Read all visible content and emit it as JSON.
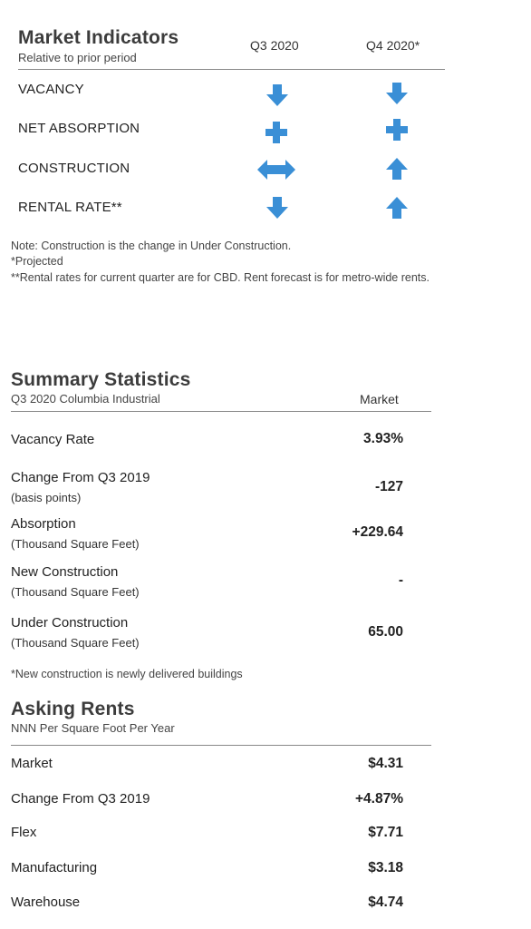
{
  "market_indicators": {
    "title": "Market Indicators",
    "subtitle": "Relative to prior period",
    "col1": "Q3 2020",
    "col2": "Q4 2020*",
    "icon_color": "#3a8fd6",
    "rows": [
      {
        "label": "VACANCY",
        "q3": "arrow-down-icon",
        "q4": "arrow-down-icon"
      },
      {
        "label": "NET ABSORPTION",
        "q3": "plus-icon",
        "q4": "plus-icon"
      },
      {
        "label": "CONSTRUCTION",
        "q3": "arrow-left-right-icon",
        "q4": "arrow-up-icon"
      },
      {
        "label": "RENTAL RATE**",
        "q3": "arrow-down-icon",
        "q4": "arrow-up-icon"
      }
    ],
    "notes": [
      "Note: Construction is the change in Under Construction.",
      "*Projected",
      "**Rental rates for current quarter are for CBD. Rent forecast is for metro-wide rents."
    ]
  },
  "summary": {
    "title": "Summary Statistics",
    "subtitle": "Q3 2020 Columbia Industrial",
    "col": "Market",
    "rows": [
      {
        "label": "Vacancy Rate",
        "sub": "",
        "value": "3.93%"
      },
      {
        "label": "Change From Q3 2019",
        "sub": "(basis points)",
        "value": "-127"
      },
      {
        "label": "Absorption",
        "sub": "(Thousand Square Feet)",
        "value": "+229.64"
      },
      {
        "label": "New Construction",
        "sub": "(Thousand Square Feet)",
        "value": "-"
      },
      {
        "label": "Under Construction",
        "sub": "(Thousand Square Feet)",
        "value": "65.00"
      }
    ],
    "note": "*New construction is newly delivered buildings"
  },
  "rents": {
    "title": "Asking Rents",
    "subtitle": "NNN Per Square Foot Per Year",
    "rows": [
      {
        "label": "Market",
        "value": "$4.31"
      },
      {
        "label": "Change From Q3 2019",
        "value": "+4.87%"
      },
      {
        "label": "Flex",
        "value": "$7.71"
      },
      {
        "label": "Manufacturing",
        "value": "$3.18"
      },
      {
        "label": "Warehouse",
        "value": "$4.74"
      }
    ]
  }
}
